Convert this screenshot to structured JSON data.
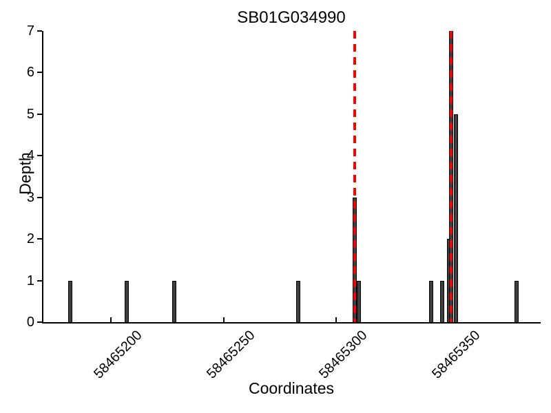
{
  "title": "SB01G034990",
  "chart_data": {
    "type": "bar",
    "title": "SB01G034990",
    "xlabel": "Coordinates",
    "ylabel": "Depth",
    "xlim": [
      58465170,
      58465390
    ],
    "ylim": [
      0,
      7
    ],
    "x_ticks": [
      58465200,
      58465250,
      58465300,
      58465350
    ],
    "y_ticks": [
      0,
      1,
      2,
      3,
      4,
      5,
      6,
      7
    ],
    "grid": false,
    "legend": null,
    "bars": [
      {
        "x": 58465182,
        "depth": 1
      },
      {
        "x": 58465207,
        "depth": 1
      },
      {
        "x": 58465228,
        "depth": 1
      },
      {
        "x": 58465283,
        "depth": 1
      },
      {
        "x": 58465308,
        "depth": 3
      },
      {
        "x": 58465310,
        "depth": 1
      },
      {
        "x": 58465342,
        "depth": 1
      },
      {
        "x": 58465347,
        "depth": 1
      },
      {
        "x": 58465350,
        "depth": 2
      },
      {
        "x": 58465351,
        "depth": 7
      },
      {
        "x": 58465353,
        "depth": 5
      },
      {
        "x": 58465380,
        "depth": 1
      }
    ],
    "vlines": [
      {
        "x": 58465308,
        "style": "dashed",
        "color": "#ff0000"
      },
      {
        "x": 58465351,
        "style": "dashed",
        "color": "#ff0000"
      }
    ],
    "colors": {
      "bar_fill": "#3f3f3f",
      "bar_edge": "#000000",
      "vline": "#ff0000",
      "axis": "#000000",
      "background": "#ffffff"
    }
  }
}
